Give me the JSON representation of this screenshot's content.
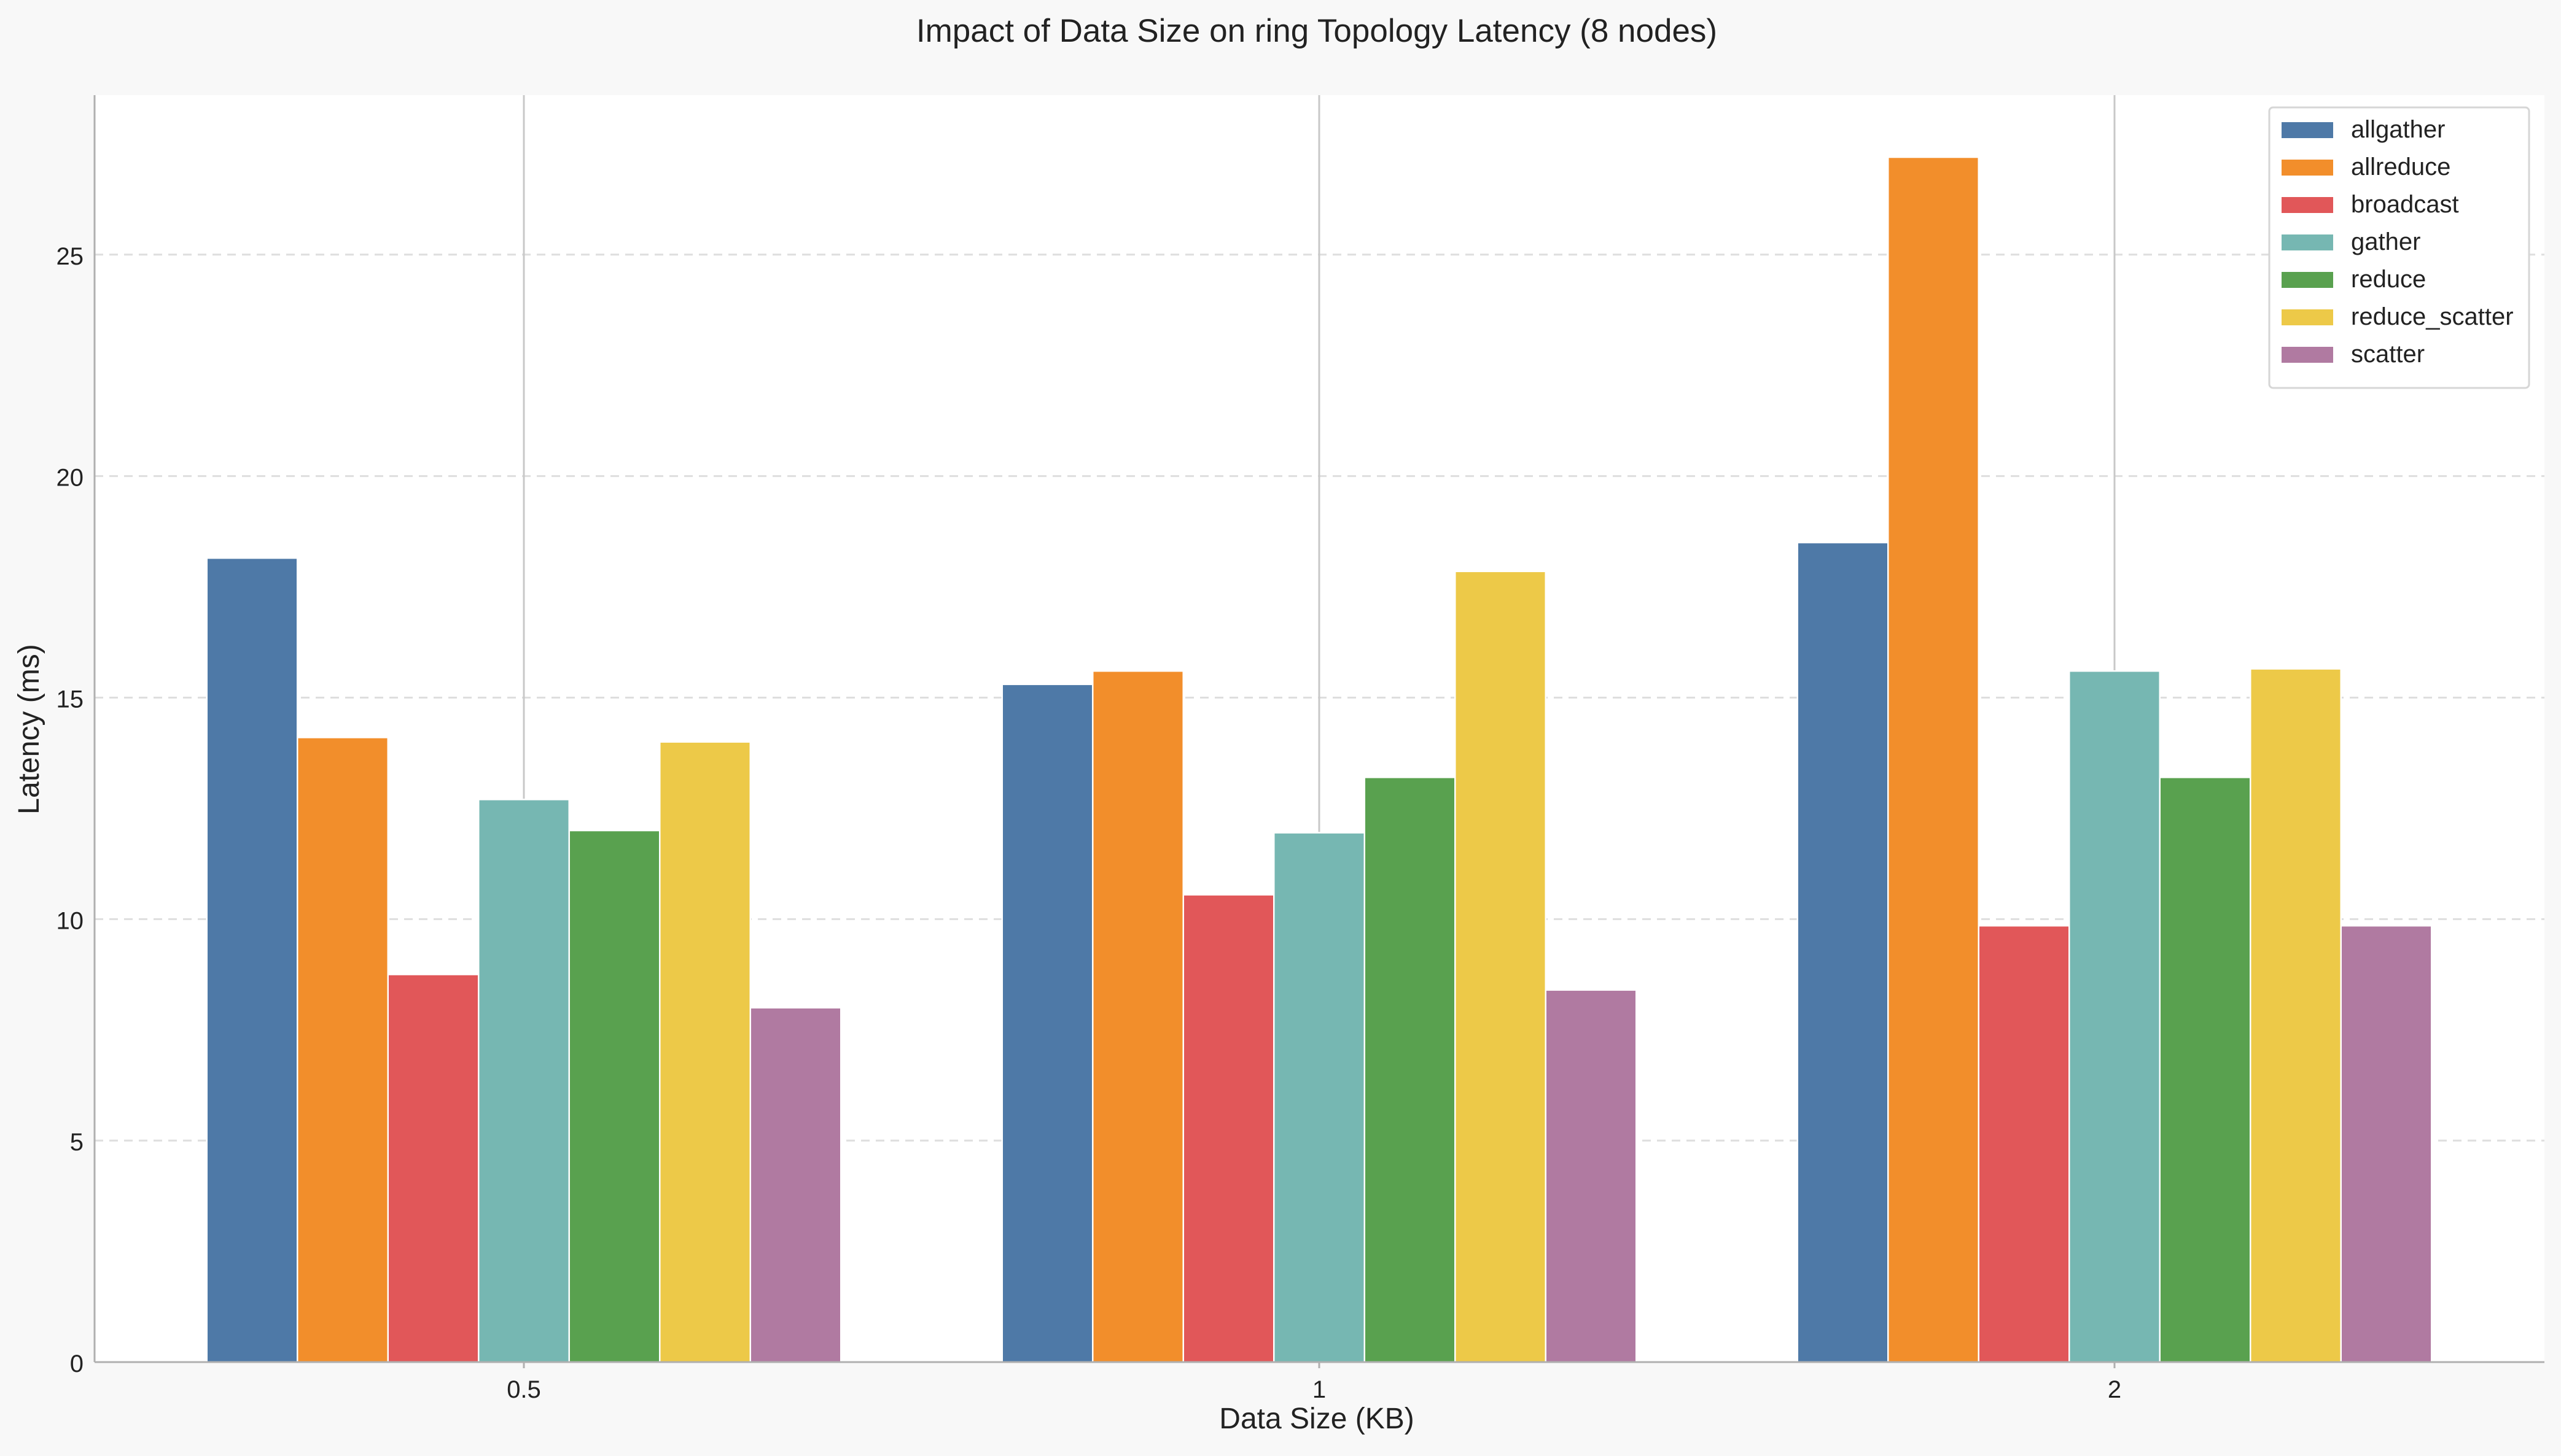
{
  "chart_data": {
    "type": "bar",
    "title": "Impact of Data Size on ring Topology Latency (8 nodes)",
    "xlabel": "Data Size (KB)",
    "ylabel": "Latency (ms)",
    "categories": [
      "0.5",
      "1",
      "2"
    ],
    "ylim": [
      0,
      28.6
    ],
    "yticks": [
      0,
      5,
      10,
      15,
      20,
      25
    ],
    "grid": "y-dashed",
    "legend_position": "top-right",
    "series": [
      {
        "name": "allgather",
        "color": "#4e79a7",
        "values": [
          18.15,
          15.3,
          18.5
        ]
      },
      {
        "name": "allreduce",
        "color": "#f28e2b",
        "values": [
          14.1,
          15.6,
          27.2
        ]
      },
      {
        "name": "broadcast",
        "color": "#e15759",
        "values": [
          8.75,
          10.55,
          9.85
        ]
      },
      {
        "name": "gather",
        "color": "#76b7b2",
        "values": [
          12.7,
          11.95,
          15.6
        ]
      },
      {
        "name": "reduce",
        "color": "#59a14f",
        "values": [
          12.0,
          13.2,
          13.2
        ]
      },
      {
        "name": "reduce_scatter",
        "color": "#edc948",
        "values": [
          14.0,
          17.85,
          15.65
        ]
      },
      {
        "name": "scatter",
        "color": "#b07aa1",
        "values": [
          8.0,
          8.4,
          9.85
        ]
      }
    ]
  }
}
